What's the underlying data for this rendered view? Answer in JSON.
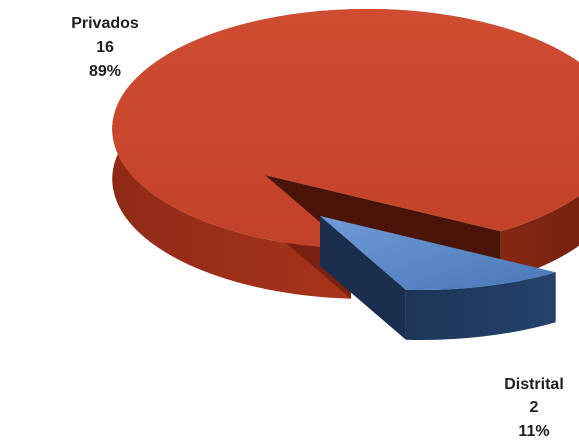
{
  "chart_data": {
    "type": "pie",
    "title": "",
    "slices": [
      {
        "name": "Privados",
        "value": 16,
        "percent": "89%",
        "color": "#c7452c"
      },
      {
        "name": "Distrital",
        "value": 2,
        "percent": "11%",
        "color": "#4f7fbf"
      }
    ],
    "exploded_slice": "Distrital",
    "style": "3d"
  }
}
